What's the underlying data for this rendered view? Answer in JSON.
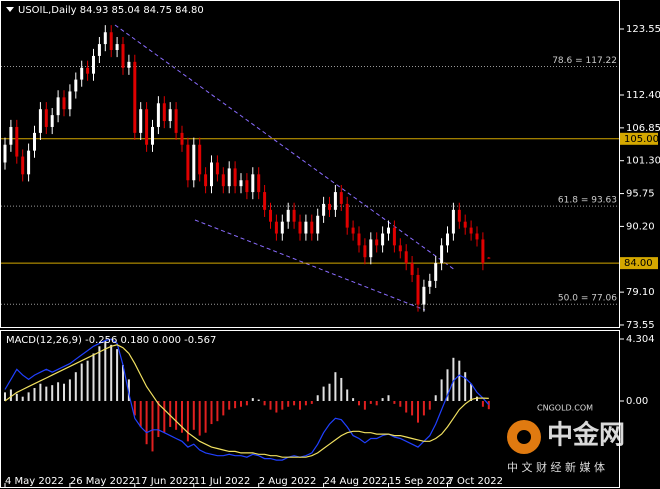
{
  "chart_data": [
    {
      "type": "candlestick",
      "title": "USOIL,Daily  84.93 85.04 84.75 84.80",
      "categories": [
        "4 May 2022",
        null,
        null,
        null,
        null,
        null,
        null,
        null,
        null,
        null,
        null,
        "26 May 2022",
        null,
        null,
        null,
        null,
        null,
        null,
        null,
        null,
        null,
        null,
        "17 Jun 2022",
        null,
        null,
        null,
        null,
        null,
        null,
        null,
        null,
        null,
        "11 Jul 2022",
        null,
        null,
        null,
        null,
        null,
        null,
        null,
        null,
        null,
        null,
        "2 Aug 2022",
        null,
        null,
        null,
        null,
        null,
        null,
        null,
        null,
        null,
        null,
        "24 Aug 2022",
        null,
        null,
        null,
        null,
        null,
        null,
        null,
        null,
        null,
        null,
        "15 Sep 2022",
        null,
        null,
        null,
        null,
        null,
        null,
        null,
        null,
        null,
        "7 Oct 2022",
        null,
        null,
        null,
        null,
        null,
        null,
        null
      ],
      "open": [
        101,
        104,
        107,
        102,
        99,
        103,
        106,
        110,
        107,
        109,
        112,
        110,
        113,
        115,
        117,
        116,
        119,
        121,
        123,
        120,
        121,
        117,
        118,
        106,
        110,
        104,
        107,
        111,
        108,
        110,
        106,
        104,
        98,
        104,
        99,
        97,
        101,
        99,
        97,
        100,
        97,
        98,
        96,
        99,
        96,
        93,
        91,
        89,
        91,
        93,
        91,
        89,
        91,
        89,
        92,
        94,
        93,
        96,
        94,
        90,
        89,
        87,
        85,
        88,
        87,
        89,
        90,
        87,
        86,
        84,
        82,
        77,
        80,
        81,
        84,
        87,
        89,
        93,
        91,
        90,
        89,
        88,
        84.93
      ],
      "high": [
        105.2,
        108.2,
        108.2,
        103.2,
        104.2,
        107.2,
        111.2,
        111.2,
        110.2,
        113.2,
        113.2,
        114.2,
        116.2,
        118.2,
        118.2,
        120.2,
        122.2,
        124.2,
        124.2,
        122.2,
        122.2,
        119.2,
        119.2,
        111.2,
        111.2,
        108.2,
        112.2,
        112.2,
        111.2,
        111.2,
        107.2,
        105.2,
        105.2,
        105.2,
        100.2,
        102.2,
        102.2,
        100.2,
        101.2,
        101.2,
        99.2,
        99.2,
        100.2,
        100.2,
        97.2,
        94.2,
        92.2,
        92.2,
        94.2,
        94.2,
        92.2,
        92.2,
        92.2,
        93.2,
        95.2,
        95.2,
        97.2,
        97.2,
        95.2,
        91.2,
        90.2,
        88.2,
        89.2,
        89.2,
        90.2,
        91.2,
        91.2,
        88.2,
        87.2,
        85.2,
        83.2,
        81.2,
        82.2,
        85.2,
        88.2,
        90.2,
        94.2,
        94.2,
        92.2,
        91.2,
        90.2,
        89.2,
        85.04
      ],
      "low": [
        99.8,
        102.8,
        100.8,
        97.8,
        97.8,
        101.8,
        104.8,
        105.8,
        105.8,
        107.8,
        108.8,
        108.8,
        111.8,
        113.8,
        114.8,
        114.8,
        117.8,
        119.8,
        118.8,
        118.8,
        115.8,
        115.8,
        104.8,
        104.8,
        102.8,
        102.8,
        105.8,
        106.8,
        106.8,
        104.8,
        102.8,
        96.8,
        96.8,
        97.8,
        95.8,
        95.8,
        97.8,
        95.8,
        95.8,
        95.8,
        95.8,
        94.8,
        94.8,
        94.8,
        91.8,
        89.8,
        87.8,
        87.8,
        89.8,
        89.8,
        87.8,
        87.8,
        87.8,
        87.8,
        90.8,
        91.8,
        91.8,
        92.8,
        88.8,
        87.8,
        85.8,
        83.8,
        83.8,
        85.8,
        85.8,
        87.8,
        85.8,
        84.8,
        82.8,
        80.8,
        75.8,
        75.8,
        78.8,
        79.8,
        82.8,
        85.8,
        87.8,
        89.8,
        88.8,
        87.8,
        86.8,
        82.8,
        84.75
      ],
      "close": [
        104,
        107,
        102,
        99,
        103,
        106,
        110,
        107,
        109,
        112,
        110,
        113,
        115,
        117,
        116,
        119,
        121,
        123,
        120,
        121,
        117,
        118,
        106,
        110,
        104,
        107,
        111,
        108,
        110,
        106,
        104,
        98,
        104,
        99,
        97,
        101,
        99,
        97,
        100,
        97,
        98,
        96,
        99,
        96,
        93,
        91,
        89,
        91,
        93,
        91,
        89,
        91,
        89,
        92,
        94,
        93,
        96,
        94,
        90,
        89,
        87,
        85,
        88,
        87,
        89,
        90,
        87,
        86,
        84,
        82,
        77,
        80,
        81,
        84,
        87,
        89,
        93,
        91,
        90,
        89,
        88,
        84,
        84.8
      ],
      "up_color": "#ffffff",
      "down_color": "#e00000",
      "ylim": [
        73.04,
        128.11
      ],
      "yticks": [
        73.55,
        {
          "value": 79.1,
          "label": "79.10"
        },
        {
          "value": 90.2,
          "label": "90.20"
        },
        95.75,
        {
          "value": 101.3,
          "label": "101.30"
        },
        106.85,
        {
          "value": 112.4,
          "label": "112.40"
        },
        123.55
      ],
      "levels": [
        {
          "value": 117.22,
          "label": "78.6 = 117.22"
        },
        {
          "value": 93.63,
          "label": "61.8 = 93.63"
        },
        {
          "value": 77.06,
          "label": "50.0 = 77.06"
        }
      ],
      "price_lines": [
        {
          "value": 105,
          "label": "105.00"
        },
        {
          "value": 84,
          "label": "84.00"
        }
      ],
      "price_line_color": "#d4a800"
    },
    {
      "type": "macd",
      "title": "MACD(12,26,9) -0.256 0.180 0.000 -0.567",
      "ylim": [
        -5.97,
        4.86
      ],
      "yticks": [
        {
          "value": 0,
          "label": "0.00"
        },
        4.304
      ],
      "series": [
        {
          "name": "histogram",
          "kind": "bars",
          "color": "#e0e0e0",
          "negative_color": "#e02020",
          "values": [
            0.6,
            0.8,
            0.5,
            0.3,
            0.6,
            0.9,
            1.2,
            1.0,
            1.1,
            1.3,
            1.2,
            1.5,
            2.0,
            2.6,
            2.8,
            3.3,
            3.8,
            4.2,
            3.9,
            3.6,
            2.5,
            1.5,
            -1.0,
            -1.8,
            -3.0,
            -3.5,
            -2.5,
            -2.2,
            -1.8,
            -2.0,
            -2.2,
            -2.8,
            -2.0,
            -2.4,
            -2.2,
            -1.6,
            -1.4,
            -1.0,
            -0.6,
            -0.5,
            -0.4,
            -0.3,
            0.2,
            0.1,
            -0.3,
            -0.6,
            -0.8,
            -0.6,
            -0.4,
            -0.3,
            -0.6,
            -0.3,
            -0.2,
            0.4,
            1.0,
            1.2,
            2.0,
            1.6,
            0.8,
            0.2,
            -0.3,
            -0.6,
            -0.2,
            -0.3,
            0.2,
            0.4,
            -0.2,
            -0.4,
            -0.8,
            -1.0,
            -1.5,
            -1.0,
            -0.6,
            0.4,
            1.5,
            2.2,
            3.0,
            2.8,
            2.0,
            1.2,
            0.3,
            -0.4,
            -0.567
          ]
        },
        {
          "name": "macd",
          "kind": "line",
          "color": "#2040ff",
          "values": [
            0.8,
            1.5,
            2.2,
            1.8,
            1.5,
            1.8,
            2.0,
            2.2,
            2.0,
            2.2,
            2.4,
            2.6,
            2.9,
            3.2,
            3.5,
            3.8,
            4.0,
            4.2,
            4.3,
            4.0,
            2.5,
            0.5,
            -1.2,
            -1.8,
            -2.2,
            -2.0,
            -2.0,
            -2.2,
            -2.4,
            -2.6,
            -2.8,
            -3.2,
            -3.0,
            -3.4,
            -3.6,
            -3.7,
            -3.8,
            -3.8,
            -3.7,
            -3.8,
            -3.8,
            -3.9,
            -3.7,
            -3.8,
            -4.0,
            -4.0,
            -4.1,
            -4.1,
            -3.9,
            -3.8,
            -3.9,
            -3.8,
            -3.6,
            -3.0,
            -2.2,
            -1.6,
            -1.2,
            -1.3,
            -1.8,
            -2.4,
            -2.6,
            -2.9,
            -2.6,
            -2.6,
            -2.4,
            -2.3,
            -2.5,
            -2.6,
            -2.8,
            -3.0,
            -3.2,
            -2.8,
            -2.4,
            -1.6,
            -0.6,
            0.4,
            1.4,
            1.8,
            1.6,
            1.2,
            0.6,
            0.2,
            -0.256
          ]
        },
        {
          "name": "signal",
          "kind": "line",
          "color": "#f0e060",
          "values": [
            0.0,
            0.3,
            0.6,
            0.8,
            1.0,
            1.2,
            1.4,
            1.6,
            1.8,
            2.0,
            2.2,
            2.4,
            2.6,
            2.8,
            3.0,
            3.2,
            3.4,
            3.6,
            3.8,
            3.9,
            3.7,
            3.3,
            2.6,
            1.8,
            1.0,
            0.4,
            -0.2,
            -0.6,
            -1.0,
            -1.4,
            -1.8,
            -2.2,
            -2.5,
            -2.8,
            -3.0,
            -3.2,
            -3.3,
            -3.4,
            -3.5,
            -3.5,
            -3.6,
            -3.6,
            -3.6,
            -3.7,
            -3.7,
            -3.8,
            -3.8,
            -3.9,
            -3.9,
            -3.9,
            -3.9,
            -3.9,
            -3.8,
            -3.6,
            -3.3,
            -3.0,
            -2.7,
            -2.4,
            -2.2,
            -2.1,
            -2.1,
            -2.2,
            -2.2,
            -2.3,
            -2.3,
            -2.3,
            -2.4,
            -2.4,
            -2.5,
            -2.6,
            -2.7,
            -2.8,
            -2.8,
            -2.6,
            -2.3,
            -1.8,
            -1.2,
            -0.6,
            -0.2,
            0.1,
            0.2,
            0.2,
            0.18
          ]
        }
      ]
    }
  ],
  "watermark": {
    "brand": "中金网",
    "site": "CNGOLD.COM",
    "slogan": "中 文 财 经 新 媒 体"
  }
}
